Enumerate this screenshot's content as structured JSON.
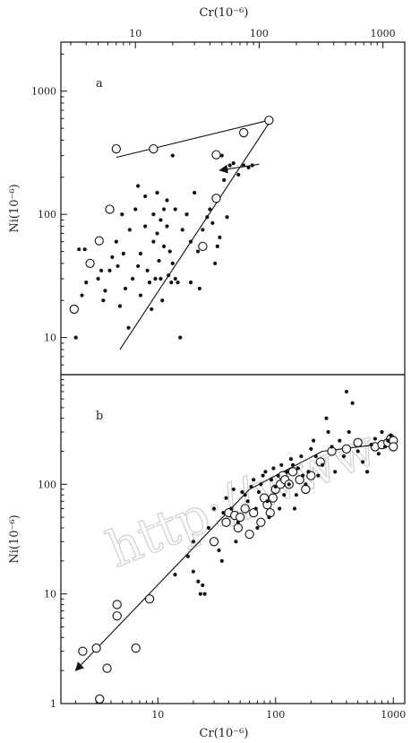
{
  "watermark": "http://www",
  "chart_data": [
    {
      "type": "scatter",
      "panel_label": "a",
      "xscale": "log",
      "yscale": "log",
      "xlabel": "Cr(10⁻⁶)",
      "ylabel": "Ni(10⁻⁶)",
      "xlabel_position": "top",
      "xlim": [
        2.5,
        1500
      ],
      "ylim": [
        5,
        2500
      ],
      "xticks": [
        10,
        100,
        1000
      ],
      "yticks": [
        10,
        100,
        1000
      ],
      "series": [
        {
          "marker": "open-circle",
          "points": [
            [
              3.2,
              17
            ],
            [
              4.3,
              40
            ],
            [
              5.1,
              61
            ],
            [
              6.2,
              110
            ],
            [
              7.0,
              340
            ],
            [
              14,
              340
            ],
            [
              35,
              55
            ],
            [
              45,
              305
            ],
            [
              45,
              135
            ],
            [
              75,
              460
            ],
            [
              120,
              580
            ]
          ]
        },
        {
          "marker": "filled-dot",
          "points": [
            [
              3.3,
              10
            ],
            [
              3.5,
              52
            ],
            [
              3.7,
              22
            ],
            [
              4.0,
              28
            ],
            [
              3.9,
              52
            ],
            [
              5.0,
              30
            ],
            [
              5.3,
              35
            ],
            [
              5.5,
              20
            ],
            [
              5.7,
              24
            ],
            [
              6.2,
              35
            ],
            [
              6.5,
              45
            ],
            [
              7.0,
              60
            ],
            [
              7.2,
              38
            ],
            [
              7.5,
              18
            ],
            [
              7.8,
              100
            ],
            [
              8.0,
              48
            ],
            [
              8.3,
              25
            ],
            [
              8.8,
              12
            ],
            [
              9.0,
              75
            ],
            [
              9.5,
              30
            ],
            [
              10,
              110
            ],
            [
              10.5,
              170
            ],
            [
              10.5,
              38
            ],
            [
              11,
              48
            ],
            [
              11,
              22
            ],
            [
              12,
              140
            ],
            [
              12,
              80
            ],
            [
              12.5,
              35
            ],
            [
              13,
              28
            ],
            [
              13.5,
              17
            ],
            [
              14,
              100
            ],
            [
              14,
              60
            ],
            [
              14.5,
              30
            ],
            [
              15,
              150
            ],
            [
              15,
              70
            ],
            [
              15.5,
              42
            ],
            [
              16,
              90
            ],
            [
              16,
              30
            ],
            [
              16.5,
              20
            ],
            [
              17,
              110
            ],
            [
              17,
              55
            ],
            [
              18,
              130
            ],
            [
              18,
              80
            ],
            [
              18.5,
              32
            ],
            [
              19,
              50
            ],
            [
              19.5,
              28
            ],
            [
              20,
              300
            ],
            [
              20,
              40
            ],
            [
              21,
              110
            ],
            [
              21,
              30
            ],
            [
              22,
              28
            ],
            [
              23,
              10
            ],
            [
              24,
              75
            ],
            [
              26,
              100
            ],
            [
              28,
              60
            ],
            [
              28,
              28
            ],
            [
              30,
              150
            ],
            [
              32,
              50
            ],
            [
              33,
              25
            ],
            [
              35,
              75
            ],
            [
              38,
              95
            ],
            [
              40,
              110
            ],
            [
              42,
              85
            ],
            [
              44,
              40
            ],
            [
              46,
              55
            ],
            [
              48,
              65
            ],
            [
              50,
              300
            ],
            [
              52,
              190
            ],
            [
              54,
              230
            ],
            [
              58,
              250
            ],
            [
              62,
              260
            ],
            [
              68,
              210
            ],
            [
              75,
              250
            ],
            [
              82,
              240
            ],
            [
              88,
              250
            ],
            [
              55,
              95
            ]
          ]
        }
      ],
      "lines": [
        {
          "points": [
            [
              7.0,
              290
            ],
            [
              120,
              580
            ]
          ]
        },
        {
          "points": [
            [
              7.5,
              8
            ],
            [
              120,
              550
            ]
          ]
        },
        {
          "points": [
            [
              100,
              255
            ],
            [
              48,
              228
            ]
          ],
          "arrow": "end"
        }
      ]
    },
    {
      "type": "scatter",
      "panel_label": "b",
      "xscale": "log",
      "yscale": "log",
      "xlabel": "Cr(10⁻⁶)",
      "ylabel": "Ni(10⁻⁶)",
      "xlabel_position": "bottom",
      "xlim": [
        1.5,
        1250
      ],
      "ylim": [
        1,
        1000
      ],
      "xticks": [
        10,
        100,
        1000
      ],
      "yticks": [
        1,
        10,
        100
      ],
      "series": [
        {
          "marker": "open-circle",
          "points": [
            [
              2.3,
              3
            ],
            [
              3.0,
              3.2
            ],
            [
              3.2,
              1.1
            ],
            [
              3.7,
              2.1
            ],
            [
              4.5,
              8
            ],
            [
              4.5,
              6.3
            ],
            [
              6.5,
              3.2
            ],
            [
              8.5,
              9
            ],
            [
              30,
              30
            ],
            [
              38,
              45
            ],
            [
              40,
              55
            ],
            [
              45,
              52
            ],
            [
              48,
              40
            ],
            [
              50,
              50
            ],
            [
              55,
              60
            ],
            [
              60,
              35
            ],
            [
              65,
              55
            ],
            [
              75,
              45
            ],
            [
              80,
              75
            ],
            [
              85,
              65
            ],
            [
              90,
              55
            ],
            [
              95,
              75
            ],
            [
              100,
              90
            ],
            [
              110,
              100
            ],
            [
              115,
              120
            ],
            [
              120,
              110
            ],
            [
              130,
              100
            ],
            [
              140,
              130
            ],
            [
              160,
              110
            ],
            [
              180,
              90
            ],
            [
              200,
              120
            ],
            [
              240,
              160
            ],
            [
              300,
              200
            ],
            [
              400,
              210
            ],
            [
              500,
              240
            ],
            [
              700,
              220
            ],
            [
              800,
              230
            ],
            [
              900,
              240
            ],
            [
              950,
              260
            ],
            [
              1000,
              250
            ],
            [
              1000,
              220
            ]
          ]
        },
        {
          "marker": "filled-dot",
          "points": [
            [
              14,
              15
            ],
            [
              18,
              22
            ],
            [
              20,
              16
            ],
            [
              22,
              13
            ],
            [
              23,
              10
            ],
            [
              24,
              12
            ],
            [
              25,
              10
            ],
            [
              20,
              30
            ],
            [
              27,
              40
            ],
            [
              30,
              60
            ],
            [
              33,
              25
            ],
            [
              35,
              20
            ],
            [
              36,
              55
            ],
            [
              38,
              75
            ],
            [
              42,
              60
            ],
            [
              44,
              90
            ],
            [
              46,
              30
            ],
            [
              48,
              45
            ],
            [
              52,
              85
            ],
            [
              55,
              80
            ],
            [
              58,
              70
            ],
            [
              62,
              95
            ],
            [
              65,
              110
            ],
            [
              68,
              60
            ],
            [
              70,
              40
            ],
            [
              72,
              85
            ],
            [
              75,
              100
            ],
            [
              78,
              120
            ],
            [
              82,
              130
            ],
            [
              85,
              70
            ],
            [
              88,
              50
            ],
            [
              92,
              110
            ],
            [
              96,
              140
            ],
            [
              100,
              95
            ],
            [
              105,
              120
            ],
            [
              108,
              60
            ],
            [
              112,
              150
            ],
            [
              118,
              80
            ],
            [
              125,
              130
            ],
            [
              130,
              100
            ],
            [
              135,
              170
            ],
            [
              140,
              150
            ],
            [
              145,
              60
            ],
            [
              150,
              80
            ],
            [
              155,
              140
            ],
            [
              165,
              180
            ],
            [
              170,
              120
            ],
            [
              180,
              100
            ],
            [
              190,
              130
            ],
            [
              200,
              210
            ],
            [
              210,
              250
            ],
            [
              220,
              180
            ],
            [
              230,
              120
            ],
            [
              250,
              150
            ],
            [
              270,
              400
            ],
            [
              280,
              300
            ],
            [
              300,
              220
            ],
            [
              320,
              130
            ],
            [
              350,
              250
            ],
            [
              380,
              180
            ],
            [
              400,
              700
            ],
            [
              420,
              300
            ],
            [
              450,
              550
            ],
            [
              500,
              200
            ],
            [
              550,
              160
            ],
            [
              600,
              130
            ],
            [
              650,
              230
            ],
            [
              700,
              260
            ],
            [
              750,
              190
            ],
            [
              800,
              300
            ],
            [
              850,
              220
            ],
            [
              900,
              250
            ],
            [
              950,
              280
            ]
          ]
        }
      ],
      "lines": [
        {
          "points": [
            [
              2.0,
              2.0
            ],
            [
              60,
              90
            ]
          ],
          "arrow": "start"
        },
        {
          "points": [
            [
              60,
              90
            ],
            [
              250,
              200
            ]
          ]
        },
        {
          "points": [
            [
              250,
              200
            ],
            [
              1000,
              240
            ]
          ]
        }
      ]
    }
  ]
}
